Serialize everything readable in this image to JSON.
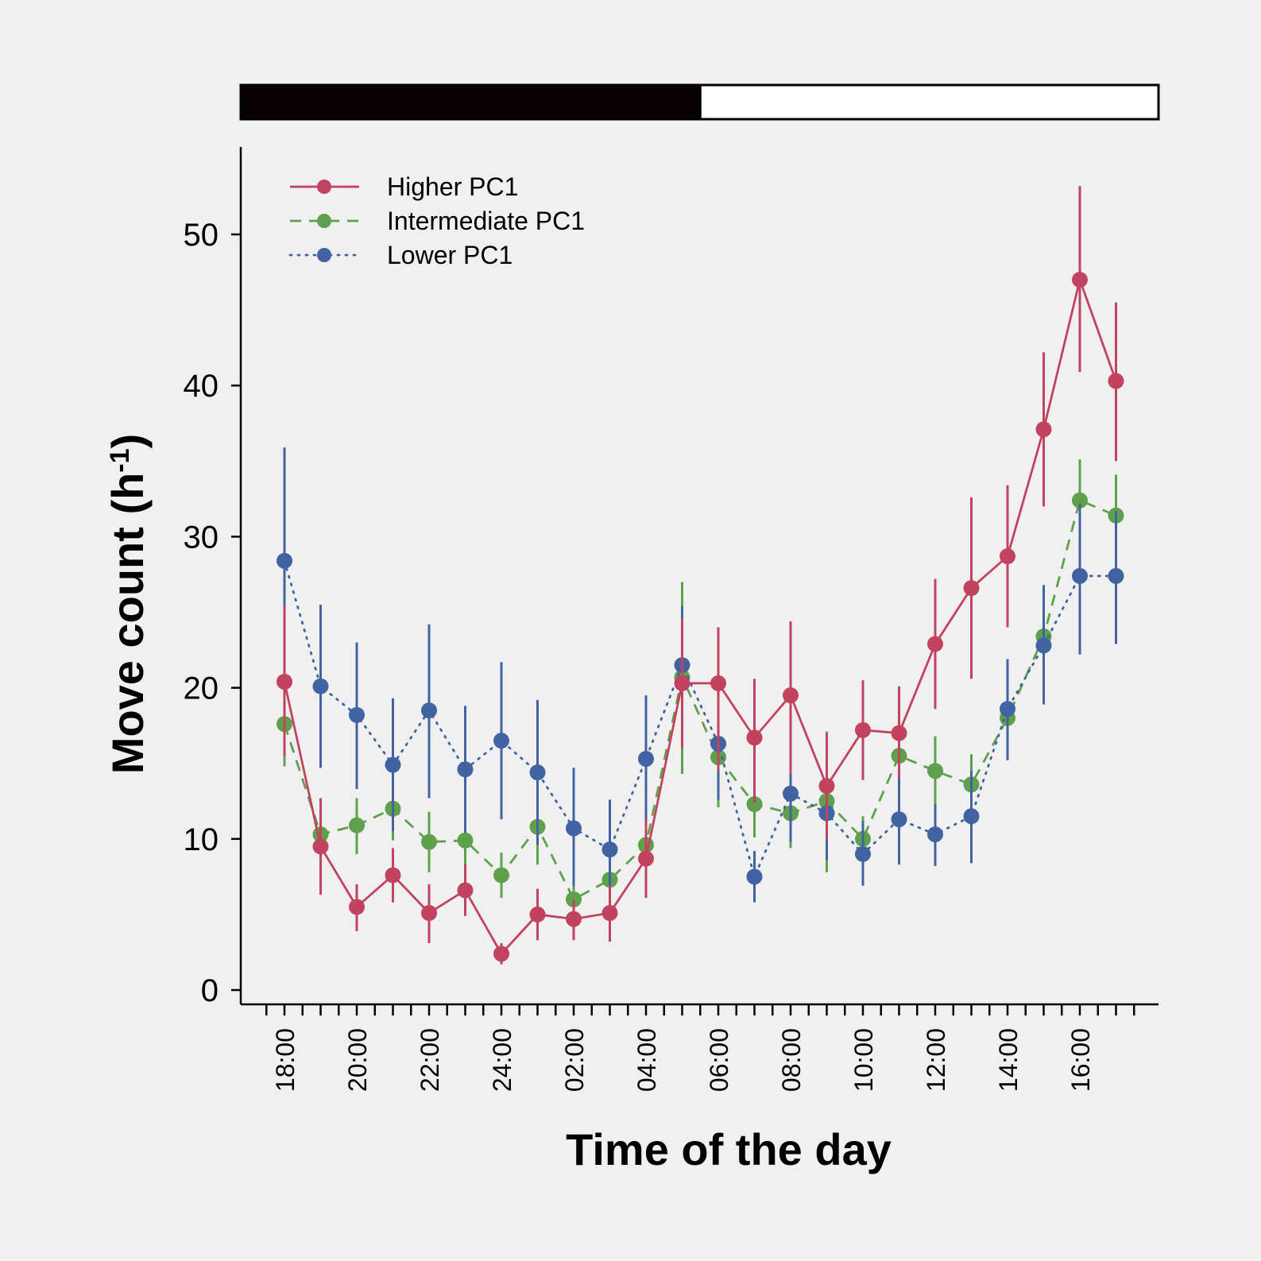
{
  "chart_data": {
    "type": "line",
    "xlabel": "Time of the day",
    "ylabel": "Move count (h",
    "ylabel_sup": "-1",
    "ylabel_close": ")",
    "ylim": [
      0,
      55
    ],
    "yticks": [
      0,
      10,
      20,
      30,
      40,
      50
    ],
    "x_tick_labels": [
      "18:00",
      "20:00",
      "22:00",
      "24:00",
      "02:00",
      "04:00",
      "06:00",
      "08:00",
      "10:00",
      "12:00",
      "14:00",
      "16:00"
    ],
    "x": [
      "18:00",
      "19:00",
      "20:00",
      "21:00",
      "22:00",
      "23:00",
      "24:00",
      "01:00",
      "02:00",
      "03:00",
      "04:00",
      "05:00",
      "06:00",
      "07:00",
      "08:00",
      "09:00",
      "10:00",
      "11:00",
      "12:00",
      "13:00",
      "14:00",
      "15:00",
      "16:00",
      "17:00"
    ],
    "light_bar": {
      "dark_until": "05:00",
      "dark_color": "#070002",
      "light_color": "#ffffff"
    },
    "grid": false,
    "legend_position": "top-left",
    "series": [
      {
        "name": "Higher PC1",
        "color": "#c1435f",
        "dash": "solid",
        "values": [
          20.4,
          9.5,
          5.5,
          7.6,
          5.1,
          6.6,
          2.4,
          5.0,
          4.7,
          5.1,
          8.7,
          20.3,
          20.3,
          16.7,
          19.5,
          13.5,
          17.2,
          17.0,
          22.9,
          26.6,
          28.7,
          37.1,
          47.0,
          40.3
        ],
        "lower": [
          15.5,
          6.3,
          3.9,
          5.8,
          3.1,
          4.9,
          1.7,
          3.3,
          3.3,
          3.2,
          6.1,
          16.0,
          14.5,
          12.4,
          14.3,
          10.0,
          13.9,
          14.0,
          18.6,
          20.6,
          24.0,
          32.0,
          40.9,
          35.0
        ],
        "upper": [
          25.4,
          12.7,
          7.0,
          9.4,
          7.0,
          8.3,
          3.1,
          6.7,
          6.0,
          6.9,
          11.3,
          24.6,
          24.0,
          20.6,
          24.4,
          17.0,
          20.5,
          20.1,
          27.2,
          32.6,
          33.4,
          42.2,
          53.2,
          45.5
        ]
      },
      {
        "name": "Intermediate PC1",
        "color": "#5fa04c",
        "dash": "dashed",
        "values": [
          17.6,
          10.3,
          10.9,
          12.0,
          9.8,
          9.9,
          7.6,
          10.8,
          6.0,
          7.3,
          9.6,
          20.7,
          15.4,
          12.3,
          11.7,
          12.5,
          10.0,
          15.5,
          14.5,
          13.6,
          18.0,
          23.4,
          32.4,
          31.4
        ],
        "lower": [
          14.8,
          8.4,
          9.0,
          9.9,
          7.8,
          8.1,
          6.1,
          8.3,
          4.8,
          5.8,
          7.6,
          14.3,
          12.1,
          10.1,
          9.4,
          7.8,
          8.5,
          13.5,
          12.2,
          11.3,
          15.4,
          20.5,
          29.8,
          28.9
        ],
        "upper": [
          20.3,
          12.6,
          12.7,
          14.2,
          11.8,
          11.7,
          9.1,
          13.3,
          7.2,
          8.8,
          11.6,
          27.0,
          18.7,
          14.5,
          14.0,
          17.1,
          11.5,
          17.5,
          16.8,
          15.6,
          20.6,
          26.3,
          35.1,
          34.1
        ]
      },
      {
        "name": "Lower PC1",
        "color": "#4263a1",
        "dash": "dotted",
        "values": [
          28.4,
          20.1,
          18.2,
          14.9,
          18.5,
          14.6,
          16.5,
          14.4,
          10.7,
          9.3,
          15.3,
          21.5,
          16.3,
          7.5,
          13.0,
          11.7,
          9.0,
          11.3,
          10.3,
          11.5,
          18.6,
          22.8,
          27.4,
          27.4
        ],
        "lower": [
          22.5,
          14.7,
          13.3,
          10.5,
          12.7,
          10.4,
          11.3,
          9.6,
          6.9,
          6.1,
          10.8,
          17.5,
          12.6,
          5.8,
          9.8,
          8.6,
          6.9,
          8.3,
          8.2,
          8.4,
          15.2,
          18.9,
          22.2,
          22.9
        ],
        "upper": [
          35.9,
          25.5,
          23.0,
          19.3,
          24.2,
          18.8,
          21.7,
          19.2,
          14.7,
          12.6,
          19.5,
          25.4,
          20.3,
          9.2,
          14.8,
          14.4,
          11.2,
          14.2,
          12.3,
          14.5,
          21.9,
          26.8,
          32.2,
          31.7
        ]
      }
    ]
  }
}
